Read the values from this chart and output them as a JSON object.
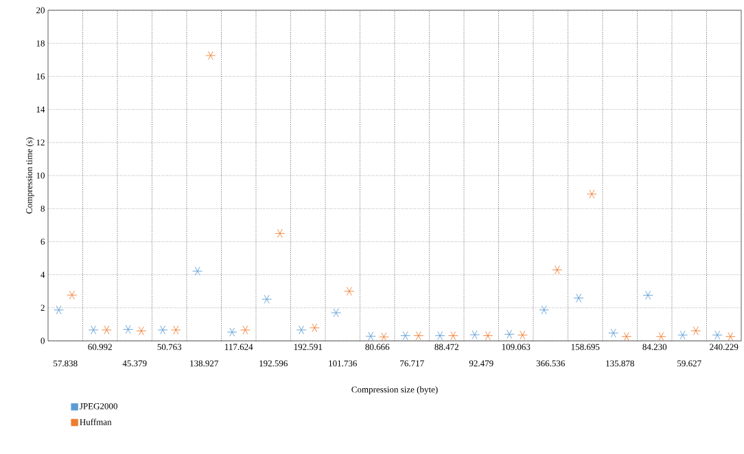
{
  "chart_data": {
    "type": "scatter",
    "xlabel": "Compression size (byte)",
    "ylabel": "Compression time (s)",
    "categories": [
      "57.838",
      "60.992",
      "45.379",
      "50.763",
      "138.927",
      "117.624",
      "192.596",
      "192.591",
      "101.736",
      "80.666",
      "76.717",
      "88.472",
      "92.479",
      "109.063",
      "366.536",
      "158.695",
      "135.878",
      "84.230",
      "59.627",
      "240.229"
    ],
    "series": [
      {
        "name": "JPEG2000",
        "color": "#5b9bd5",
        "values": [
          1.87,
          0.66,
          0.69,
          0.66,
          4.22,
          0.53,
          2.52,
          0.66,
          1.7,
          0.28,
          0.31,
          0.31,
          0.37,
          0.4,
          1.87,
          2.59,
          0.47,
          2.76,
          0.35,
          0.35
        ]
      },
      {
        "name": "Huffman",
        "color": "#ed7d31",
        "values": [
          2.77,
          0.66,
          0.6,
          0.66,
          17.26,
          0.66,
          6.5,
          0.79,
          3.0,
          0.24,
          0.31,
          0.31,
          0.31,
          0.35,
          4.29,
          8.88,
          0.26,
          0.26,
          0.61,
          0.26
        ]
      }
    ],
    "ylim": [
      0,
      20
    ],
    "yticks": [
      0,
      2,
      4,
      6,
      8,
      10,
      12,
      14,
      16,
      18,
      20
    ],
    "grid": true,
    "legend": "bottom left",
    "marker": "cross"
  }
}
